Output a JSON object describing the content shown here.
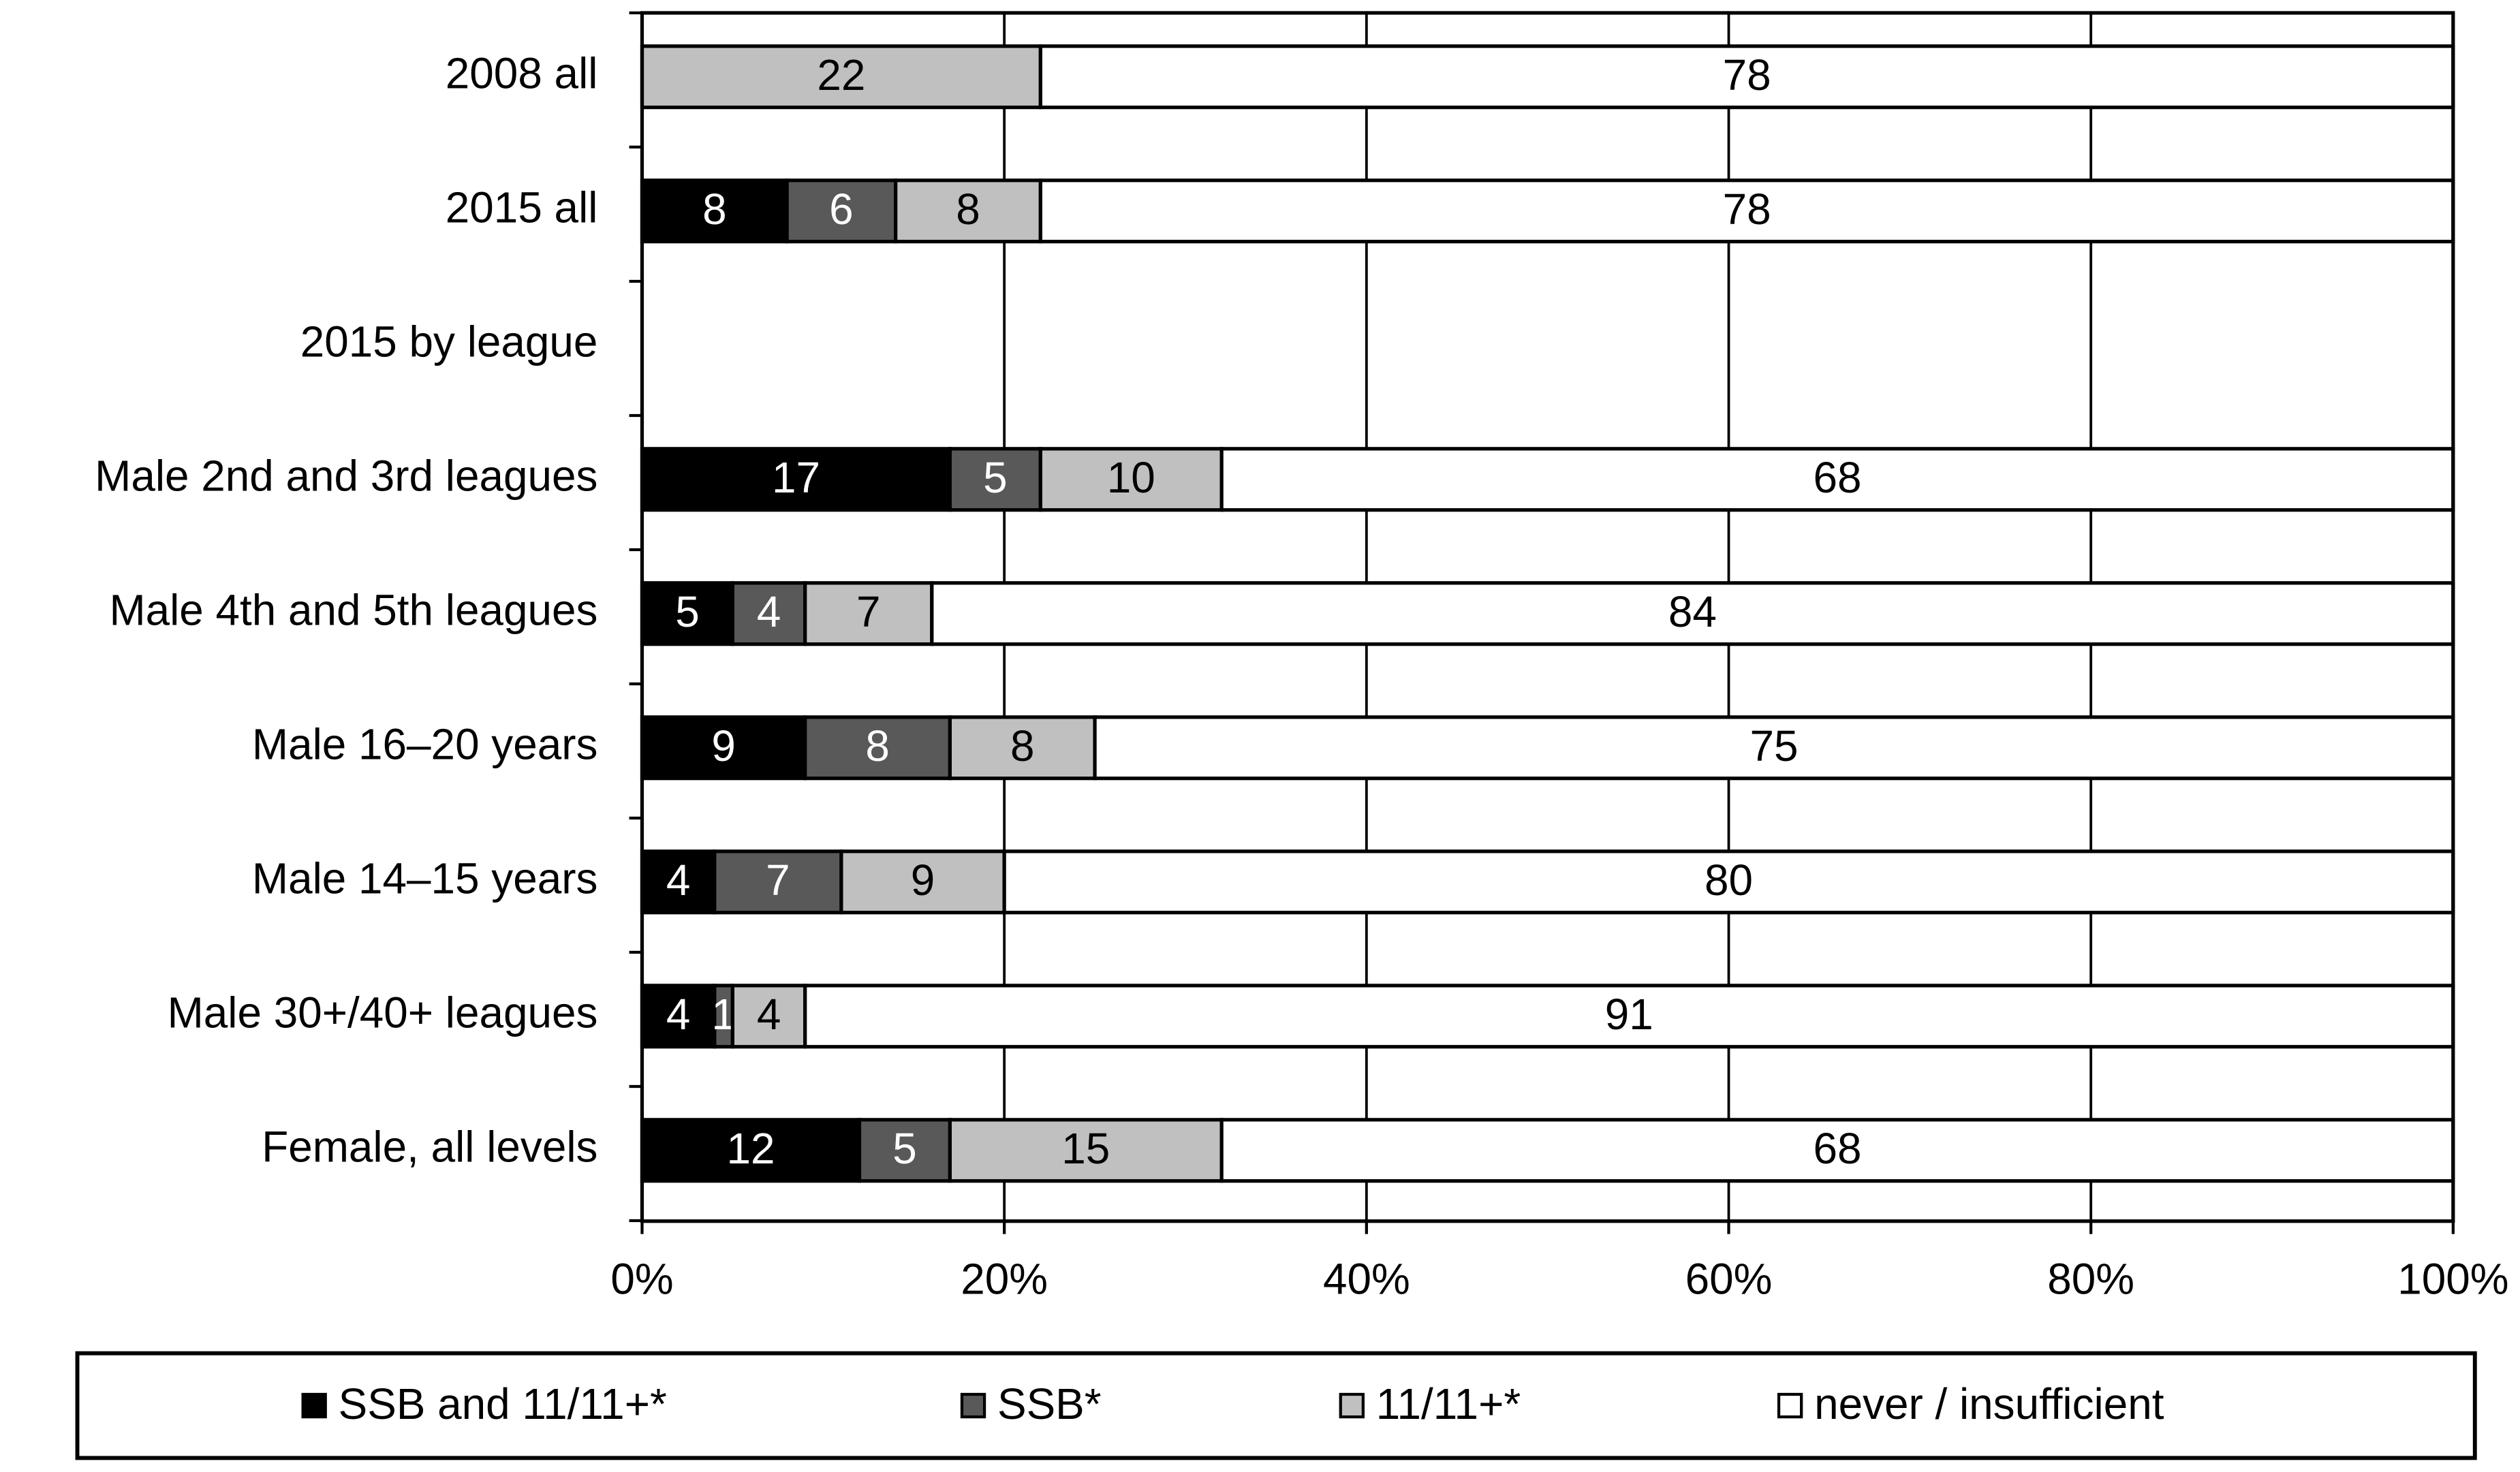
{
  "chart_data": {
    "type": "bar",
    "orientation": "horizontal",
    "stacked": true,
    "percent_stacked": true,
    "title": "",
    "xlabel": "",
    "ylabel": "",
    "xlim": [
      0,
      100
    ],
    "x_ticks": [
      "0%",
      "20%",
      "40%",
      "60%",
      "80%",
      "100%"
    ],
    "x_tick_values": [
      0,
      20,
      40,
      60,
      80,
      100
    ],
    "grid": "vertical",
    "legend_position": "bottom",
    "categories": [
      "2008 all",
      "2015 all",
      "2015 by league",
      "Male 2nd and 3rd leagues",
      "Male 4th and 5th leagues",
      "Male 16–20 years",
      "Male 14–15 years",
      "Male 30+/40+ leagues",
      "Female, all levels"
    ],
    "series": [
      {
        "name": "SSB and 11/11+*",
        "color": "#000000",
        "label_color": "#ffffff",
        "values": [
          null,
          8,
          null,
          17,
          5,
          9,
          4,
          4,
          12
        ]
      },
      {
        "name": "SSB*",
        "color": "#595959",
        "label_color": "#ffffff",
        "values": [
          null,
          6,
          null,
          5,
          4,
          8,
          7,
          1,
          5
        ]
      },
      {
        "name": "11/11+*",
        "color": "#c0c0c0",
        "label_color": "#000000",
        "values": [
          22,
          8,
          null,
          10,
          7,
          8,
          9,
          4,
          15
        ]
      },
      {
        "name": "never / insufficient",
        "color": "#ffffff",
        "label_color": "#000000",
        "values": [
          78,
          78,
          null,
          68,
          84,
          75,
          80,
          91,
          68
        ]
      }
    ]
  }
}
